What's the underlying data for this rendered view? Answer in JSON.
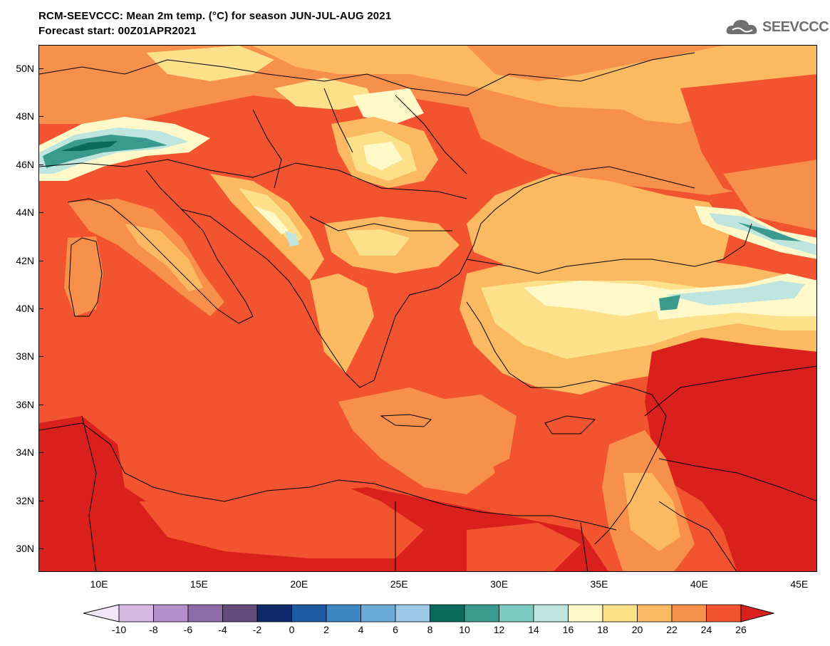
{
  "title_line1": "RCM-SEEVCCC: Mean 2m temp. (°C) for season JUN-JUL-AUG 2021",
  "title_line2": "Forecast start: 00Z01APR2021",
  "logo_text": "SEEVCCC",
  "lat_labels": [
    "50N",
    "48N",
    "46N",
    "44N",
    "42N",
    "40N",
    "38N",
    "36N",
    "34N",
    "32N",
    "30N"
  ],
  "lon_labels": [
    "10E",
    "15E",
    "20E",
    "25E",
    "30E",
    "35E",
    "40E",
    "45E"
  ],
  "colorbar": {
    "labels": [
      "-10",
      "-8",
      "-6",
      "-4",
      "-2",
      "0",
      "2",
      "4",
      "6",
      "8",
      "10",
      "12",
      "14",
      "16",
      "18",
      "20",
      "22",
      "24",
      "26"
    ],
    "colors": [
      "#f1e6f7",
      "#d7b7e3",
      "#b48fc9",
      "#8c6ba8",
      "#654a7c",
      "#0f2a6b",
      "#1e5aa2",
      "#3c86c2",
      "#6aaad6",
      "#9dc9e6",
      "#0b6a5e",
      "#3a9a8e",
      "#7ccbc0",
      "#bfe6de",
      "#fff9c9",
      "#fde08a",
      "#fbb961",
      "#f7904a",
      "#f1542f",
      "#d9201c"
    ]
  }
}
